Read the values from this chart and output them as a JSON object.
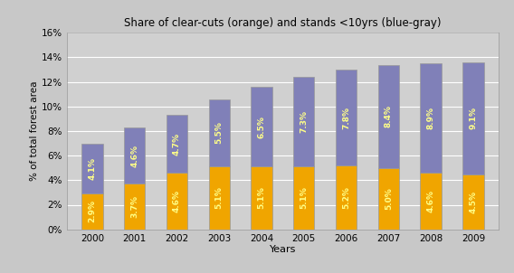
{
  "years": [
    "2000",
    "2001",
    "2002",
    "2003",
    "2004",
    "2005",
    "2006",
    "2007",
    "2008",
    "2009"
  ],
  "clearcuts": [
    2.9,
    3.7,
    4.6,
    5.1,
    5.1,
    5.1,
    5.2,
    5.0,
    4.6,
    4.5
  ],
  "young_stands": [
    4.1,
    4.6,
    4.7,
    5.5,
    6.5,
    7.3,
    7.8,
    8.4,
    8.9,
    9.1
  ],
  "clearcut_labels": [
    "2.9%",
    "3.7%",
    "4.6%",
    "5.1%",
    "5.1%",
    "5.1%",
    "5.2%",
    "5.0%",
    "4.6%",
    "4.5%"
  ],
  "young_labels": [
    "4.1%",
    "4.6%",
    "4.7%",
    "5.5%",
    "6.5%",
    "7.3%",
    "7.8%",
    "8.4%",
    "8.9%",
    "9.1%"
  ],
  "orange_color": "#F0A500",
  "blue_color": "#8080B8",
  "title": "Share of clear-cuts (orange) and stands <10yrs (blue-gray)",
  "xlabel": "Years",
  "ylabel": "% of total forest area",
  "ylim": [
    0,
    16
  ],
  "yticks": [
    0,
    2,
    4,
    6,
    8,
    10,
    12,
    14,
    16
  ],
  "label_color": "#FFFF88",
  "outer_bg": "#C8C8C8",
  "plot_bg_color": "#D0D0D0",
  "grid_color": "#BBBBBB",
  "label_fontsize": 6.5,
  "title_fontsize": 8.5,
  "bar_width": 0.5
}
